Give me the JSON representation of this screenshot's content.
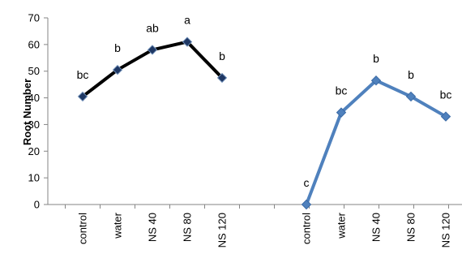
{
  "chart_data": {
    "type": "line",
    "title": "",
    "xlabel": "",
    "ylabel": "Root Number",
    "ylim": [
      0,
      70
    ],
    "yticks": [
      "0",
      "10",
      "20",
      "30",
      "40",
      "50",
      "60",
      "70"
    ],
    "grid": false,
    "legend": "none",
    "series": [
      {
        "categories": [
          "control",
          "water",
          "NS 40",
          "NS 80",
          "NS 120"
        ],
        "values": [
          40.5,
          50.5,
          58,
          61,
          47.5
        ],
        "labels": [
          "bc",
          "b",
          "ab",
          "a",
          "b"
        ],
        "color": "#000000",
        "marker_color": "#1f3864"
      },
      {
        "categories": [
          "control",
          "water",
          "NS 40",
          "NS 80",
          "NS 120"
        ],
        "values": [
          0,
          34.5,
          46.5,
          40.5,
          33
        ],
        "labels": [
          "c",
          "bc",
          "b",
          "b",
          "bc"
        ],
        "color": "#4f81bd",
        "marker_color": "#4f81bd"
      }
    ]
  }
}
